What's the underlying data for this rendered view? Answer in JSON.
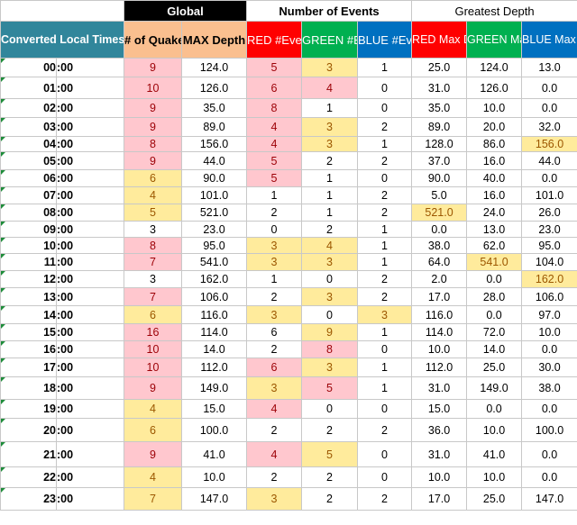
{
  "header_top": {
    "global": "Global",
    "events": "Number of Events",
    "depth": "Greatest Depth"
  },
  "header_cols": {
    "time": "Converted Local Times",
    "quakes": "# of Quakes",
    "maxdepth": "MAX Depth",
    "red_events": "RED #Events",
    "green_events": "GREEN #Events",
    "blue_events": "BLUE #Events",
    "red_depth": "RED Max Depth",
    "green_depth": "GREEN Max Depth",
    "blue_depth": "BLUE Max Depth"
  },
  "colors": {
    "teal": "#31869b",
    "salmon": "#fabf8f",
    "red": "#ff0000",
    "green": "#00b050",
    "blue": "#0070c0",
    "bad_fill": "#ffc7ce",
    "bad_text": "#9c0006",
    "neutral_fill": "#ffeb9c",
    "neutral_text": "#9c5700"
  },
  "rows": [
    {
      "hour": "00",
      "min": ":00",
      "q": "9",
      "md": "124.0",
      "re": "5",
      "ge": "3",
      "be": "1",
      "rd": "25.0",
      "gd": "124.0",
      "bd": "13.0"
    },
    {
      "hour": "01",
      "min": ":00",
      "q": "10",
      "md": "126.0",
      "re": "6",
      "ge": "4",
      "be": "0",
      "rd": "31.0",
      "gd": "126.0",
      "bd": "0.0"
    },
    {
      "hour": "02",
      "min": ":00",
      "q": "9",
      "md": "35.0",
      "re": "8",
      "ge": "1",
      "be": "0",
      "rd": "35.0",
      "gd": "10.0",
      "bd": "0.0"
    },
    {
      "hour": "03",
      "min": ":00",
      "q": "9",
      "md": "89.0",
      "re": "4",
      "ge": "3",
      "be": "2",
      "rd": "89.0",
      "gd": "20.0",
      "bd": "32.0"
    },
    {
      "hour": "04",
      "min": ":00",
      "q": "8",
      "md": "156.0",
      "re": "4",
      "ge": "3",
      "be": "1",
      "rd": "128.0",
      "gd": "86.0",
      "bd": "156.0"
    },
    {
      "hour": "05",
      "min": ":00",
      "q": "9",
      "md": "44.0",
      "re": "5",
      "ge": "2",
      "be": "2",
      "rd": "37.0",
      "gd": "16.0",
      "bd": "44.0"
    },
    {
      "hour": "06",
      "min": ":00",
      "q": "6",
      "md": "90.0",
      "re": "5",
      "ge": "1",
      "be": "0",
      "rd": "90.0",
      "gd": "40.0",
      "bd": "0.0"
    },
    {
      "hour": "07",
      "min": ":00",
      "q": "4",
      "md": "101.0",
      "re": "1",
      "ge": "1",
      "be": "2",
      "rd": "5.0",
      "gd": "16.0",
      "bd": "101.0"
    },
    {
      "hour": "08",
      "min": ":00",
      "q": "5",
      "md": "521.0",
      "re": "2",
      "ge": "1",
      "be": "2",
      "rd": "521.0",
      "gd": "24.0",
      "bd": "26.0"
    },
    {
      "hour": "09",
      "min": ":00",
      "q": "3",
      "md": "23.0",
      "re": "0",
      "ge": "2",
      "be": "1",
      "rd": "0.0",
      "gd": "13.0",
      "bd": "23.0"
    },
    {
      "hour": "10",
      "min": ":00",
      "q": "8",
      "md": "95.0",
      "re": "3",
      "ge": "4",
      "be": "1",
      "rd": "38.0",
      "gd": "62.0",
      "bd": "95.0"
    },
    {
      "hour": "11",
      "min": ":00",
      "q": "7",
      "md": "541.0",
      "re": "3",
      "ge": "3",
      "be": "1",
      "rd": "64.0",
      "gd": "541.0",
      "bd": "104.0"
    },
    {
      "hour": "12",
      "min": ":00",
      "q": "3",
      "md": "162.0",
      "re": "1",
      "ge": "0",
      "be": "2",
      "rd": "2.0",
      "gd": "0.0",
      "bd": "162.0"
    },
    {
      "hour": "13",
      "min": ":00",
      "q": "7",
      "md": "106.0",
      "re": "2",
      "ge": "3",
      "be": "2",
      "rd": "17.0",
      "gd": "28.0",
      "bd": "106.0"
    },
    {
      "hour": "14",
      "min": ":00",
      "q": "6",
      "md": "116.0",
      "re": "3",
      "ge": "0",
      "be": "3",
      "rd": "116.0",
      "gd": "0.0",
      "bd": "97.0"
    },
    {
      "hour": "15",
      "min": ":00",
      "q": "16",
      "md": "114.0",
      "re": "6",
      "ge": "9",
      "be": "1",
      "rd": "114.0",
      "gd": "72.0",
      "bd": "10.0"
    },
    {
      "hour": "16",
      "min": ":00",
      "q": "10",
      "md": "14.0",
      "re": "2",
      "ge": "8",
      "be": "0",
      "rd": "10.0",
      "gd": "14.0",
      "bd": "0.0"
    },
    {
      "hour": "17",
      "min": ":00",
      "q": "10",
      "md": "112.0",
      "re": "6",
      "ge": "3",
      "be": "1",
      "rd": "112.0",
      "gd": "25.0",
      "bd": "30.0"
    },
    {
      "hour": "18",
      "min": ":00",
      "q": "9",
      "md": "149.0",
      "re": "3",
      "ge": "5",
      "be": "1",
      "rd": "31.0",
      "gd": "149.0",
      "bd": "38.0"
    },
    {
      "hour": "19",
      "min": ":00",
      "q": "4",
      "md": "15.0",
      "re": "4",
      "ge": "0",
      "be": "0",
      "rd": "15.0",
      "gd": "0.0",
      "bd": "0.0"
    },
    {
      "hour": "20",
      "min": ":00",
      "q": "6",
      "md": "100.0",
      "re": "2",
      "ge": "2",
      "be": "2",
      "rd": "36.0",
      "gd": "10.0",
      "bd": "100.0"
    },
    {
      "hour": "21",
      "min": ":00",
      "q": "9",
      "md": "41.0",
      "re": "4",
      "ge": "5",
      "be": "0",
      "rd": "31.0",
      "gd": "41.0",
      "bd": "0.0"
    },
    {
      "hour": "22",
      "min": ":00",
      "q": "4",
      "md": "10.0",
      "re": "2",
      "ge": "2",
      "be": "0",
      "rd": "10.0",
      "gd": "10.0",
      "bd": "0.0"
    },
    {
      "hour": "23",
      "min": ":00",
      "q": "7",
      "md": "147.0",
      "re": "3",
      "ge": "2",
      "be": "2",
      "rd": "17.0",
      "gd": "25.0",
      "bd": "147.0"
    }
  ],
  "highlights": {
    "q": {
      "pink": [
        0,
        1,
        2,
        3,
        4,
        5,
        10,
        11,
        13,
        15,
        16,
        17,
        18,
        21
      ],
      "yel": [
        6,
        7,
        8,
        14,
        19,
        20,
        22,
        23
      ]
    },
    "re": {
      "pink": [
        0,
        1,
        2,
        3,
        4,
        5,
        6,
        17,
        19,
        21
      ],
      "yel": [
        10,
        11,
        14,
        18,
        23
      ]
    },
    "ge": {
      "pink": [
        1,
        16,
        18
      ],
      "yel": [
        0,
        3,
        4,
        10,
        11,
        13,
        15,
        17,
        21
      ]
    },
    "be": {
      "pink": [],
      "yel": [
        14
      ]
    },
    "rd": {
      "pink": [],
      "yel": [
        8
      ]
    },
    "gd": {
      "pink": [],
      "yel": [
        11
      ]
    },
    "bd": {
      "pink": [],
      "yel": [
        4,
        12
      ]
    }
  },
  "flagged_rows": [
    0,
    1,
    2,
    3,
    4,
    5,
    6,
    7,
    8,
    9,
    10,
    11,
    12,
    13,
    14,
    15,
    16,
    17,
    18,
    19,
    20,
    21,
    22,
    23
  ]
}
